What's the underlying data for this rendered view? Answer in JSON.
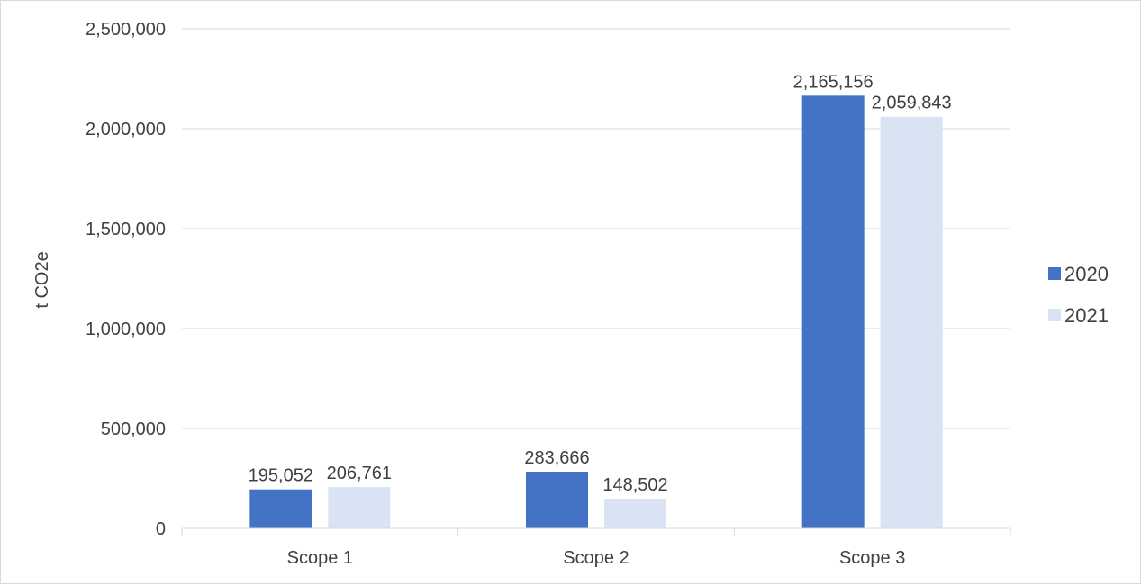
{
  "chart_data": {
    "type": "bar",
    "categories": [
      "Scope 1",
      "Scope 2",
      "Scope 3"
    ],
    "series": [
      {
        "name": "2020",
        "values": [
          195052,
          283666,
          2165156
        ],
        "labels": [
          "195,052",
          "283,666",
          "2,165,156"
        ],
        "color": "#4472C4"
      },
      {
        "name": "2021",
        "values": [
          206761,
          148502,
          2059843
        ],
        "labels": [
          "206,761",
          "148,502",
          "2,059,843"
        ],
        "color": "#DAE3F3"
      }
    ],
    "ylabel": "t CO2e",
    "ylim": [
      0,
      2500000
    ],
    "yticks": [
      0,
      500000,
      1000000,
      1500000,
      2000000,
      2500000
    ],
    "ytick_labels": [
      "0",
      "500,000",
      "1,000,000",
      "1,500,000",
      "2,000,000",
      "2,500,000"
    ],
    "grid": true,
    "legend_position": "right"
  }
}
